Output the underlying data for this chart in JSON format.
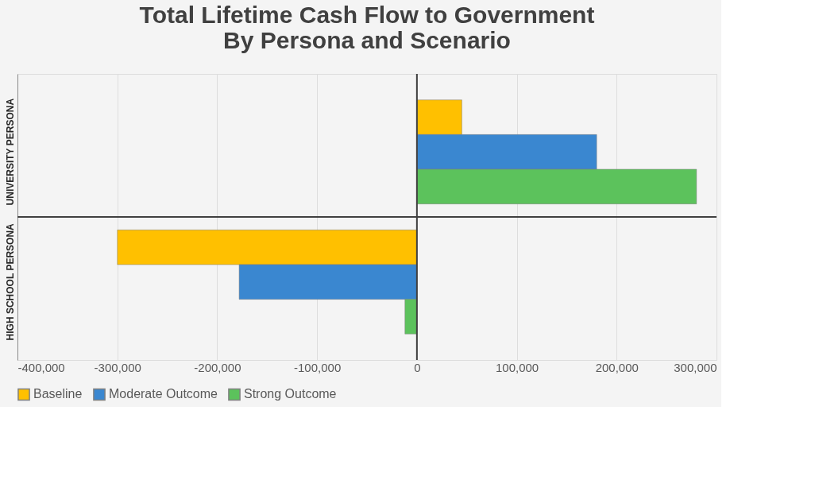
{
  "chart_data": {
    "type": "bar",
    "orientation": "horizontal",
    "title": "Total Lifetime Cash Flow to Government\nBy Persona and Scenario",
    "categories": [
      "UNIVERSITY PERSONA",
      "HIGH SCHOOL PERSONA"
    ],
    "series": [
      {
        "name": "Baseline",
        "color": "#ffc000",
        "values": [
          45000,
          -300000
        ]
      },
      {
        "name": "Moderate Outcome",
        "color": "#3a87d0",
        "values": [
          180000,
          -178000
        ]
      },
      {
        "name": "Strong Outcome",
        "color": "#5cc25c",
        "values": [
          280000,
          -12000
        ]
      }
    ],
    "xlim": [
      -400000,
      300000
    ],
    "xticks": [
      {
        "value": -400000,
        "label": "-400,000"
      },
      {
        "value": -300000,
        "label": "-300,000"
      },
      {
        "value": -200000,
        "label": "-200,000"
      },
      {
        "value": -100000,
        "label": "-100,000"
      },
      0,
      {
        "value": 100000,
        "label": "100,000"
      },
      {
        "value": 200000,
        "label": "200,000"
      },
      {
        "value": 300000,
        "label": "300,000"
      }
    ],
    "grid": "x",
    "legend": "bottom"
  }
}
